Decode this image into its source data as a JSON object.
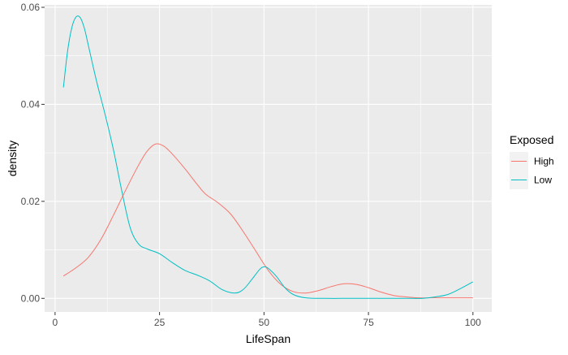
{
  "chart_data": {
    "type": "line",
    "subtype": "density",
    "title": "",
    "xlabel": "LifeSpan",
    "ylabel": "density",
    "xlim": [
      -2.5,
      104.5
    ],
    "ylim": [
      -0.0028,
      0.0605
    ],
    "x_ticks": [
      0,
      25,
      50,
      75,
      100
    ],
    "x_tick_labels": [
      "0",
      "25",
      "50",
      "75",
      "100"
    ],
    "y_ticks": [
      0,
      0.02,
      0.04,
      0.06
    ],
    "y_tick_labels": [
      "0.00",
      "0.02",
      "0.04",
      "0.06"
    ],
    "grid": true,
    "legend": {
      "title": "Exposed",
      "position": "right",
      "entries": [
        "High",
        "Low"
      ]
    },
    "series": [
      {
        "name": "High",
        "color": "#F8766D",
        "points": [
          [
            2,
            0.0046
          ],
          [
            5,
            0.0063
          ],
          [
            8,
            0.0085
          ],
          [
            11,
            0.0122
          ],
          [
            14,
            0.0172
          ],
          [
            17,
            0.0225
          ],
          [
            20,
            0.0275
          ],
          [
            22,
            0.0303
          ],
          [
            24,
            0.0318
          ],
          [
            26,
            0.0314
          ],
          [
            28,
            0.0298
          ],
          [
            31,
            0.0268
          ],
          [
            34,
            0.0235
          ],
          [
            36,
            0.0215
          ],
          [
            39,
            0.0197
          ],
          [
            42,
            0.0174
          ],
          [
            45,
            0.0138
          ],
          [
            48,
            0.0098
          ],
          [
            51,
            0.0058
          ],
          [
            54,
            0.0029
          ],
          [
            57,
            0.0014
          ],
          [
            60,
            0.0011
          ],
          [
            63,
            0.0016
          ],
          [
            66,
            0.0024
          ],
          [
            69,
            0.003
          ],
          [
            72,
            0.0029
          ],
          [
            75,
            0.0022
          ],
          [
            78,
            0.0013
          ],
          [
            81,
            0.0006
          ],
          [
            84,
            0.0003
          ],
          [
            87,
            0.0001
          ],
          [
            90,
            0.0001
          ],
          [
            95,
            0.0001
          ],
          [
            100,
            0.0001
          ]
        ]
      },
      {
        "name": "Low",
        "color": "#00BFC4",
        "points": [
          [
            2,
            0.0435
          ],
          [
            3,
            0.051
          ],
          [
            4,
            0.0558
          ],
          [
            5,
            0.058
          ],
          [
            6,
            0.0579
          ],
          [
            7,
            0.0557
          ],
          [
            8,
            0.052
          ],
          [
            10,
            0.0445
          ],
          [
            12,
            0.0378
          ],
          [
            14,
            0.0305
          ],
          [
            16,
            0.022
          ],
          [
            18,
            0.0145
          ],
          [
            20,
            0.0112
          ],
          [
            22,
            0.0102
          ],
          [
            25,
            0.0092
          ],
          [
            28,
            0.0074
          ],
          [
            31,
            0.0058
          ],
          [
            34,
            0.0048
          ],
          [
            37,
            0.0036
          ],
          [
            40,
            0.0018
          ],
          [
            43,
            0.0011
          ],
          [
            45,
            0.0018
          ],
          [
            47,
            0.0038
          ],
          [
            49,
            0.006
          ],
          [
            50,
            0.0065
          ],
          [
            51,
            0.0062
          ],
          [
            53,
            0.0045
          ],
          [
            55,
            0.0022
          ],
          [
            57,
            0.0008
          ],
          [
            60,
            0.0001
          ],
          [
            65,
            0.0
          ],
          [
            70,
            0.0
          ],
          [
            75,
            0.0
          ],
          [
            80,
            0.0
          ],
          [
            85,
            0.0
          ],
          [
            88,
            0.0
          ],
          [
            91,
            0.0003
          ],
          [
            94,
            0.0008
          ],
          [
            97,
            0.002
          ],
          [
            100,
            0.0034
          ]
        ]
      }
    ]
  }
}
